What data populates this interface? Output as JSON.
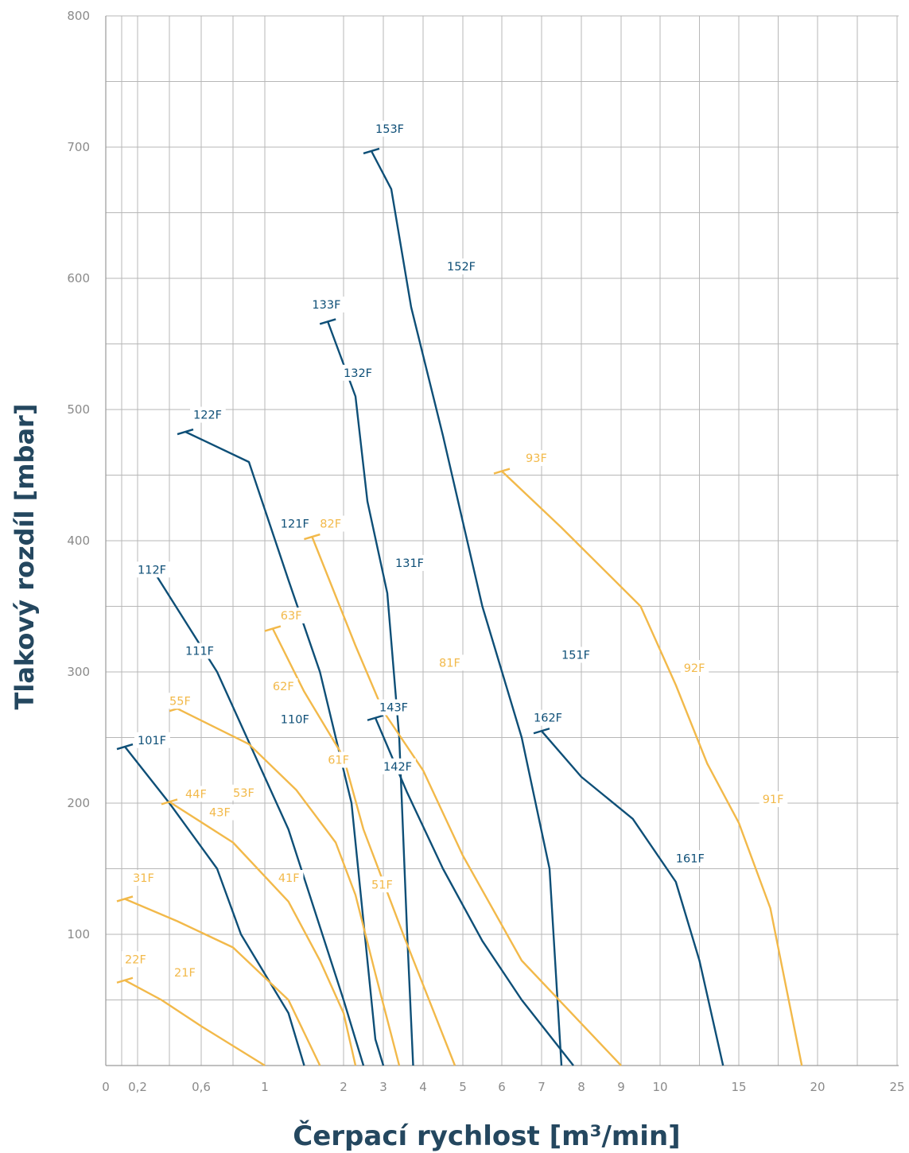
{
  "chart_data": {
    "type": "line",
    "xlabel": "Čerpací rychlost [m³/min]",
    "ylabel": "Tlakový rozdíl [mbar]",
    "ylim": [
      0,
      800
    ],
    "x_tick_labels": [
      "0",
      "0,2",
      "0,6",
      "1",
      "2",
      "3",
      "4",
      "5",
      "6",
      "7",
      "8",
      "9",
      "10",
      "15",
      "20",
      "25"
    ],
    "y_ticks": [
      100,
      200,
      300,
      400,
      500,
      600,
      700,
      800
    ],
    "grid": true,
    "colors": {
      "blue": "#0e4f77",
      "yellow": "#f2b94a"
    },
    "series": [
      {
        "color": "blue",
        "points": [
          [
            0.12,
            243
          ],
          [
            0.4,
            200
          ],
          [
            0.7,
            150
          ],
          [
            0.85,
            100
          ],
          [
            1.3,
            40
          ],
          [
            1.5,
            0
          ]
        ]
      },
      {
        "color": "blue",
        "points": [
          [
            0.3,
            377
          ],
          [
            0.7,
            300
          ],
          [
            1.3,
            180
          ],
          [
            2.0,
            50
          ],
          [
            2.5,
            0
          ]
        ]
      },
      {
        "color": "blue",
        "points": [
          [
            0.5,
            483
          ],
          [
            0.9,
            460
          ],
          [
            1.3,
            370
          ],
          [
            1.7,
            300
          ],
          [
            2.2,
            200
          ],
          [
            2.8,
            20
          ],
          [
            3.0,
            0
          ]
        ]
      },
      {
        "color": "blue",
        "points": [
          [
            1.8,
            567
          ],
          [
            2.3,
            510
          ],
          [
            2.6,
            430
          ],
          [
            3.1,
            360
          ],
          [
            3.4,
            250
          ],
          [
            3.6,
            100
          ],
          [
            3.75,
            0
          ]
        ]
      },
      {
        "color": "blue",
        "points": [
          [
            2.7,
            697
          ],
          [
            3.2,
            668
          ],
          [
            3.7,
            578
          ],
          [
            4.5,
            480
          ],
          [
            5.5,
            350
          ],
          [
            6.5,
            250
          ],
          [
            7.2,
            150
          ],
          [
            7.5,
            0
          ]
        ]
      },
      {
        "color": "blue",
        "points": [
          [
            2.8,
            265
          ],
          [
            3.6,
            208
          ],
          [
            4.5,
            150
          ],
          [
            5.5,
            95
          ],
          [
            6.5,
            50
          ],
          [
            7.8,
            0
          ]
        ]
      },
      {
        "color": "blue",
        "points": [
          [
            7.0,
            255
          ],
          [
            8.0,
            220
          ],
          [
            9.3,
            188
          ],
          [
            11,
            140
          ],
          [
            12.5,
            80
          ],
          [
            14.0,
            0
          ]
        ]
      },
      {
        "color": "yellow",
        "points": [
          [
            0.12,
            65
          ],
          [
            0.35,
            50
          ],
          [
            0.6,
            30
          ],
          [
            1.0,
            0
          ]
        ]
      },
      {
        "color": "yellow",
        "points": [
          [
            0.12,
            127
          ],
          [
            0.45,
            110
          ],
          [
            0.8,
            90
          ],
          [
            1.3,
            50
          ],
          [
            1.7,
            0
          ]
        ]
      },
      {
        "color": "yellow",
        "points": [
          [
            0.4,
            201
          ],
          [
            0.8,
            170
          ],
          [
            1.3,
            125
          ],
          [
            1.7,
            80
          ],
          [
            2.0,
            40
          ],
          [
            2.3,
            0
          ]
        ]
      },
      {
        "color": "yellow",
        "points": [
          [
            0.45,
            272
          ],
          [
            0.9,
            245
          ],
          [
            1.4,
            210
          ],
          [
            1.9,
            170
          ],
          [
            2.3,
            130
          ],
          [
            2.8,
            70
          ],
          [
            3.4,
            0
          ]
        ]
      },
      {
        "color": "yellow",
        "points": [
          [
            1.1,
            333
          ],
          [
            1.5,
            285
          ],
          [
            2.0,
            235
          ],
          [
            2.5,
            180
          ],
          [
            3.5,
            100
          ],
          [
            4.8,
            0
          ]
        ]
      },
      {
        "color": "yellow",
        "points": [
          [
            1.6,
            403
          ],
          [
            2.3,
            320
          ],
          [
            3.0,
            270
          ],
          [
            4.0,
            225
          ],
          [
            5.0,
            160
          ],
          [
            6.5,
            80
          ],
          [
            9.0,
            0
          ]
        ]
      },
      {
        "color": "yellow",
        "points": [
          [
            6.0,
            453
          ],
          [
            7.5,
            410
          ],
          [
            9.5,
            350
          ],
          [
            11,
            290
          ],
          [
            13,
            230
          ],
          [
            15,
            185
          ],
          [
            17,
            120
          ],
          [
            19,
            0
          ]
        ]
      }
    ],
    "labels": [
      {
        "text": "101F",
        "color": "blue",
        "x": 0.2,
        "y": 245
      },
      {
        "text": "110F",
        "color": "blue",
        "x": 1.2,
        "y": 261
      },
      {
        "text": "111F",
        "color": "blue",
        "x": 0.5,
        "y": 313
      },
      {
        "text": "112F",
        "color": "blue",
        "x": 0.2,
        "y": 375
      },
      {
        "text": "121F",
        "color": "blue",
        "x": 1.2,
        "y": 410
      },
      {
        "text": "122F",
        "color": "blue",
        "x": 0.55,
        "y": 493
      },
      {
        "text": "131F",
        "color": "blue",
        "x": 3.3,
        "y": 380
      },
      {
        "text": "132F",
        "color": "blue",
        "x": 2.0,
        "y": 525
      },
      {
        "text": "133F",
        "color": "blue",
        "x": 1.6,
        "y": 577
      },
      {
        "text": "142F",
        "color": "blue",
        "x": 3.0,
        "y": 225
      },
      {
        "text": "143F",
        "color": "blue",
        "x": 2.9,
        "y": 270
      },
      {
        "text": "151F",
        "color": "blue",
        "x": 7.5,
        "y": 310
      },
      {
        "text": "152F",
        "color": "blue",
        "x": 4.6,
        "y": 606
      },
      {
        "text": "153F",
        "color": "blue",
        "x": 2.8,
        "y": 711
      },
      {
        "text": "161F",
        "color": "blue",
        "x": 11.0,
        "y": 155
      },
      {
        "text": "162F",
        "color": "blue",
        "x": 6.8,
        "y": 262
      },
      {
        "text": "21F",
        "color": "yellow",
        "x": 0.43,
        "y": 68
      },
      {
        "text": "22F",
        "color": "yellow",
        "x": 0.12,
        "y": 78
      },
      {
        "text": "31F",
        "color": "yellow",
        "x": 0.17,
        "y": 140
      },
      {
        "text": "41F",
        "color": "yellow",
        "x": 1.17,
        "y": 140
      },
      {
        "text": "43F",
        "color": "yellow",
        "x": 0.65,
        "y": 190
      },
      {
        "text": "44F",
        "color": "yellow",
        "x": 0.5,
        "y": 204
      },
      {
        "text": "51F",
        "color": "yellow",
        "x": 2.7,
        "y": 135
      },
      {
        "text": "53F",
        "color": "yellow",
        "x": 0.8,
        "y": 205
      },
      {
        "text": "55F",
        "color": "yellow",
        "x": 0.4,
        "y": 275
      },
      {
        "text": "61F",
        "color": "yellow",
        "x": 1.8,
        "y": 230
      },
      {
        "text": "62F",
        "color": "yellow",
        "x": 1.1,
        "y": 286
      },
      {
        "text": "63F",
        "color": "yellow",
        "x": 1.2,
        "y": 340
      },
      {
        "text": "81F",
        "color": "yellow",
        "x": 4.4,
        "y": 304
      },
      {
        "text": "82F",
        "color": "yellow",
        "x": 1.7,
        "y": 410
      },
      {
        "text": "91F",
        "color": "yellow",
        "x": 16.5,
        "y": 200
      },
      {
        "text": "92F",
        "color": "yellow",
        "x": 11.5,
        "y": 300
      },
      {
        "text": "93F",
        "color": "yellow",
        "x": 6.6,
        "y": 460
      }
    ]
  }
}
